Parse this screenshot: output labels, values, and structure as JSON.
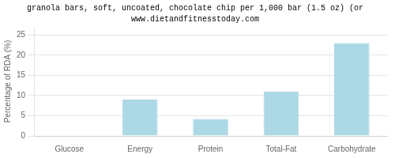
{
  "chart_data": {
    "type": "bar",
    "title": "granola bars, soft, uncoated, chocolate chip per 1,000 bar (1.5 oz) (or",
    "subtitle": "www.dietandfitnesstoday.com",
    "ylabel": "Percentage of RDA (%)",
    "categories": [
      "Glucose",
      "Energy",
      "Protein",
      "Total-Fat",
      "Carbohydrate"
    ],
    "values": [
      0,
      9.0,
      4.2,
      11.0,
      23.0
    ],
    "color": "#add8e6",
    "ylim": [
      0,
      27
    ],
    "yticks": [
      0,
      5,
      10,
      15,
      20,
      25
    ],
    "grid": true
  }
}
